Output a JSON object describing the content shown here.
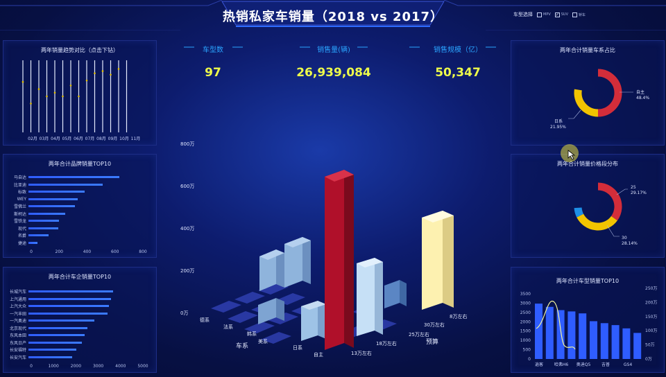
{
  "header": {
    "title": "热销私家车销量（2018 vs 2017）"
  },
  "filter": {
    "label": "车型选择",
    "options": [
      {
        "label": "MPV",
        "checked": false
      },
      {
        "label": "SUV",
        "checked": true
      },
      {
        "label": "轿车",
        "checked": false
      }
    ]
  },
  "kpis": [
    {
      "label": "车型数",
      "value": "97"
    },
    {
      "label": "销售量(辆)",
      "value": "26,939,084"
    },
    {
      "label": "销售规模（亿）",
      "value": "50,347"
    }
  ],
  "trend": {
    "title": "两年销量趋势对比（点击下钻）",
    "months": [
      "02月",
      "03月",
      "04月",
      "05月",
      "06月",
      "07月",
      "08月",
      "09月",
      "10月",
      "11月"
    ]
  },
  "brands": {
    "title": "两年合计品牌销量TOP10",
    "items": [
      {
        "name": "马自达",
        "value": 650
      },
      {
        "name": "比亚迪",
        "value": 530
      },
      {
        "name": "标致",
        "value": 400
      },
      {
        "name": "WEY",
        "value": 355
      },
      {
        "name": "雪佛兰",
        "value": 335
      },
      {
        "name": "斯柯达",
        "value": 265
      },
      {
        "name": "雪铁龙",
        "value": 220
      },
      {
        "name": "现代",
        "value": 215
      },
      {
        "name": "名爵",
        "value": 145
      },
      {
        "name": "捷途",
        "value": 65
      }
    ],
    "ticks": [
      "0",
      "200",
      "400",
      "600",
      "800"
    ],
    "max": 800
  },
  "makers": {
    "title": "两年合计车企销量TOP10",
    "items": [
      {
        "name": "长城汽车",
        "value": 3800
      },
      {
        "name": "上汽通用",
        "value": 3700
      },
      {
        "name": "上汽大众",
        "value": 3600
      },
      {
        "name": "一汽丰田",
        "value": 3550
      },
      {
        "name": "一汽奥迪",
        "value": 2950
      },
      {
        "name": "北京现代",
        "value": 2650
      },
      {
        "name": "东风本田",
        "value": 2500
      },
      {
        "name": "东风日产",
        "value": 2400
      },
      {
        "name": "长安福特",
        "value": 2150
      },
      {
        "name": "长安汽车",
        "value": 1950
      }
    ],
    "ticks": [
      "0",
      "1000",
      "2000",
      "3000",
      "4000",
      "5000"
    ],
    "max": 5000
  },
  "center3d": {
    "y_ticks": [
      "800万",
      "600万",
      "400万",
      "200万",
      "0万"
    ],
    "x_axis_label": "车系",
    "y_axis_label": "预算",
    "series_labels": [
      "德系",
      "法系",
      "韩系",
      "美系",
      "日系",
      "自主"
    ],
    "price_labels": [
      "8万左右",
      "30万左右",
      "25万左右",
      "18万左右",
      "13万左右"
    ]
  },
  "share": {
    "title": "两年合计销量车系占比",
    "labels": [
      {
        "name": "自主",
        "pct": "48.4%"
      },
      {
        "name": "日系",
        "pct": "21.95%"
      }
    ],
    "colors": {
      "a": "#d32d3a",
      "b": "#f2c400"
    }
  },
  "price_dist": {
    "title": "两年合计销量价格段分布",
    "labels": [
      {
        "name": "25",
        "pct": "29.17%"
      },
      {
        "name": "30",
        "pct": "28.14%"
      }
    ],
    "colors": {
      "a": "#d32d3a",
      "b": "#f2c400",
      "c": "#1e8fe6"
    }
  },
  "models": {
    "title": "两年合计车型销量TOP10",
    "categories": [
      "逍客",
      "哈弗H6",
      "奥迪Q5",
      "吉普",
      "GS4"
    ],
    "left_ticks": [
      "3500",
      "3000",
      "2500",
      "2000",
      "1500",
      "1000",
      "500",
      "0"
    ],
    "right_ticks": [
      "250万",
      "200万",
      "150万",
      "100万",
      "50万",
      "0万"
    ]
  }
}
